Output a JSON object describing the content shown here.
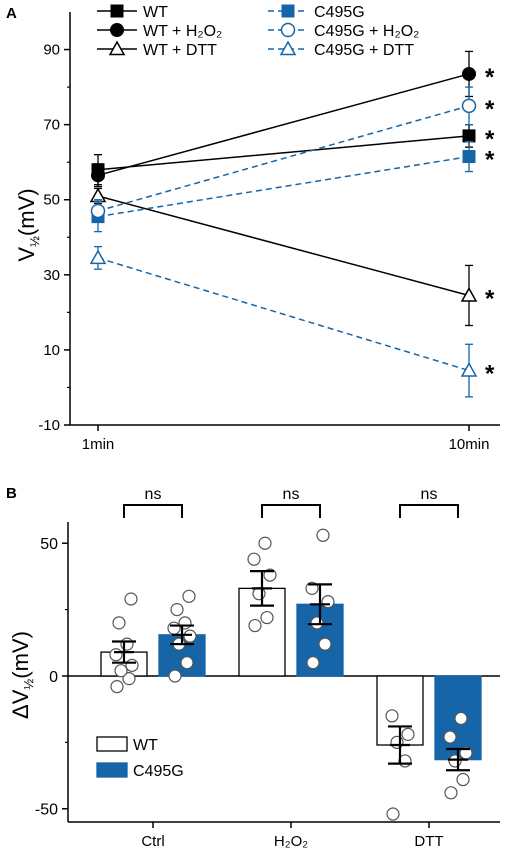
{
  "colors": {
    "wt": "#000000",
    "mutant": "#1565a8",
    "point_fill": "#ffffff",
    "point_stroke": "#555555"
  },
  "chart_data": [
    {
      "panel_label": "A",
      "type": "line",
      "x": [
        "1min",
        "10min"
      ],
      "ylabel_main": "V",
      "ylabel_sub": "½",
      "ylabel_unit": "(mV)",
      "ylim": [
        -10,
        100
      ],
      "yticks": [
        "90",
        "70",
        "50",
        "30",
        "10",
        "-10"
      ],
      "grid": false,
      "legend_position": "top",
      "series": [
        {
          "name": "WT",
          "key": "wt",
          "values": [
            58,
            67
          ],
          "errors": [
            4,
            3
          ],
          "marker": "square-filled",
          "line": "solid",
          "significance": [
            "",
            "*"
          ]
        },
        {
          "name": "WT + H₂O₂",
          "key": "wt",
          "values": [
            56.5,
            83.5
          ],
          "errors": [
            3,
            6
          ],
          "marker": "circle-filled",
          "line": "solid",
          "significance": [
            "",
            "*"
          ]
        },
        {
          "name": "WT + DTT",
          "key": "wt",
          "values": [
            51,
            24.5
          ],
          "errors": [
            2,
            8
          ],
          "marker": "triangle-open",
          "line": "solid",
          "significance": [
            "",
            "*"
          ]
        },
        {
          "name": "C495G",
          "key": "mutant",
          "values": [
            45.5,
            61.5
          ],
          "errors": [
            4,
            4
          ],
          "marker": "square-filled",
          "line": "dashed",
          "significance": [
            "",
            "*"
          ]
        },
        {
          "name": "C495G + H₂O₂",
          "key": "mutant",
          "values": [
            47,
            75
          ],
          "errors": [
            3,
            5
          ],
          "marker": "circle-open",
          "line": "dashed",
          "significance": [
            "",
            "*"
          ]
        },
        {
          "name": "C495G + DTT",
          "key": "mutant",
          "values": [
            34.5,
            4.5
          ],
          "errors": [
            3,
            7
          ],
          "marker": "triangle-open",
          "line": "dashed",
          "significance": [
            "",
            "*"
          ]
        }
      ]
    },
    {
      "panel_label": "B",
      "type": "bar",
      "categories": [
        "Ctrl",
        "H₂O₂",
        "DTT"
      ],
      "ylabel_main": "ΔV",
      "ylabel_sub": "½",
      "ylabel_unit": "(mV)",
      "ylim": [
        -55,
        58
      ],
      "yticks": [
        "50",
        "0",
        "-50"
      ],
      "grid": false,
      "legend_position": "bottom-left",
      "series": [
        {
          "name": "WT",
          "key": "wt",
          "fill": "open",
          "values": [
            9,
            33,
            -26
          ],
          "errors": [
            4,
            6.5,
            7
          ],
          "points": [
            [
              -4,
              -1,
              2,
              4,
              8,
              12,
              20,
              29
            ],
            [
              19,
              22,
              31,
              38,
              44,
              50
            ],
            [
              -52,
              -32,
              -25,
              -22,
              -15
            ]
          ]
        },
        {
          "name": "C495G",
          "key": "mutant",
          "fill": "filled",
          "values": [
            15.5,
            27,
            -31.5
          ],
          "errors": [
            3.5,
            7.5,
            4
          ],
          "points": [
            [
              0,
              5,
              12,
              15,
              18,
              20,
              25,
              30
            ],
            [
              5,
              12,
              20,
              28,
              33,
              53
            ],
            [
              -44,
              -39,
              -32,
              -29,
              -23,
              -16
            ]
          ]
        }
      ],
      "comparisons": [
        "ns",
        "ns",
        "ns"
      ]
    }
  ]
}
